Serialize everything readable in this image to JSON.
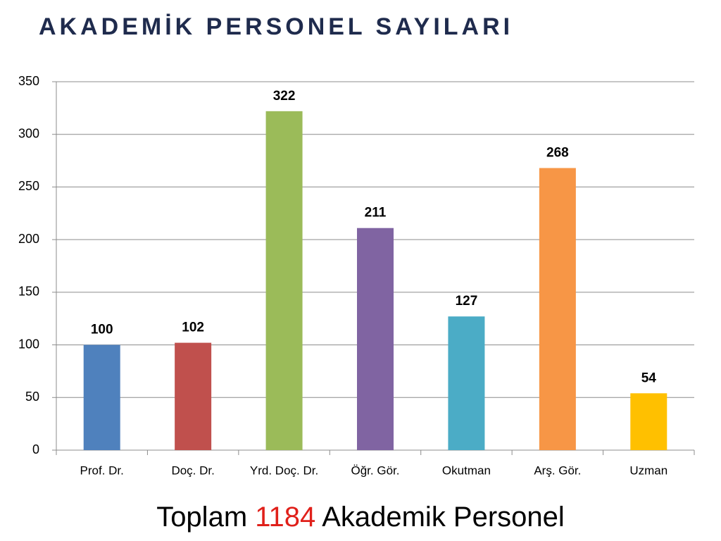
{
  "chart_data": {
    "type": "bar",
    "title": "AKADEMİK PERSONEL SAYILARI",
    "categories": [
      "Prof. Dr.",
      "Doç. Dr.",
      "Yrd. Doç. Dr.",
      "Öğr. Gör.",
      "Okutman",
      "Arş. Gör.",
      "Uzman"
    ],
    "values": [
      100,
      102,
      322,
      211,
      127,
      268,
      54
    ],
    "colors": [
      "#4f81bd",
      "#c0504d",
      "#9bbb59",
      "#8064a2",
      "#4bacc6",
      "#f79646",
      "#ffc000"
    ],
    "ylim": [
      0,
      350
    ],
    "yticks": [
      0,
      50,
      100,
      150,
      200,
      250,
      300,
      350
    ],
    "grid": true,
    "footer": {
      "before": "Toplam",
      "total": 1184,
      "after": "Akademik Personel",
      "total_color": "#e0201a"
    }
  }
}
